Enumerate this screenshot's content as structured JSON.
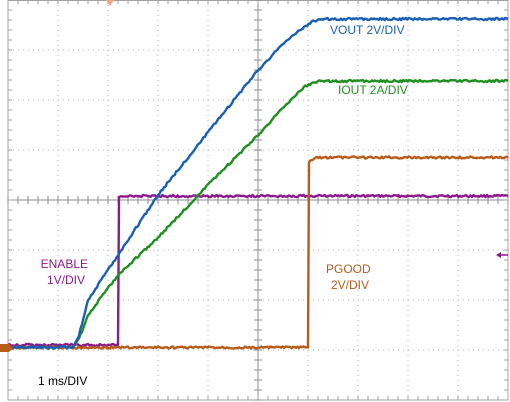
{
  "chart_data": {
    "type": "line",
    "x_divisions": 10,
    "y_divisions": 8,
    "grid": true,
    "timebase_label": "1 ms/DIV",
    "series": [
      {
        "key": "vout",
        "label_lines": [
          "VOUT 2V/DIV"
        ],
        "color": "#1a5fb4",
        "points": [
          [
            0,
            6.95
          ],
          [
            1.3,
            6.95
          ],
          [
            1.42,
            6.7
          ],
          [
            1.6,
            6.0
          ],
          [
            2.2,
            5.1
          ],
          [
            3.0,
            3.9
          ],
          [
            4.0,
            2.65
          ],
          [
            5.0,
            1.4
          ],
          [
            5.6,
            0.78
          ],
          [
            6.1,
            0.42
          ],
          [
            6.3,
            0.38
          ],
          [
            10,
            0.38
          ]
        ]
      },
      {
        "key": "iout",
        "label_lines": [
          "IOUT 2A/DIV"
        ],
        "color": "#1f8f1f",
        "points": [
          [
            0,
            6.95
          ],
          [
            1.3,
            6.95
          ],
          [
            1.45,
            6.7
          ],
          [
            1.6,
            6.3
          ],
          [
            2.2,
            5.5
          ],
          [
            3.0,
            4.75
          ],
          [
            4.0,
            3.7
          ],
          [
            5.0,
            2.7
          ],
          [
            5.6,
            2.05
          ],
          [
            5.95,
            1.72
          ],
          [
            6.2,
            1.62
          ],
          [
            10,
            1.62
          ]
        ]
      },
      {
        "key": "enable",
        "label_lines": [
          "ENABLE",
          "1V/DIV"
        ],
        "color": "#8b1a8b",
        "points": [
          [
            0,
            6.9
          ],
          [
            2.2,
            6.9
          ],
          [
            2.22,
            3.95
          ],
          [
            2.4,
            3.92
          ],
          [
            10,
            3.92
          ]
        ]
      },
      {
        "key": "pgood",
        "label_lines": [
          "PGOOD",
          "2V/DIV"
        ],
        "color": "#b85c1a",
        "points": [
          [
            0,
            6.95
          ],
          [
            6.0,
            6.95
          ],
          [
            6.02,
            3.25
          ],
          [
            6.15,
            3.15
          ],
          [
            10,
            3.15
          ]
        ]
      }
    ]
  }
}
